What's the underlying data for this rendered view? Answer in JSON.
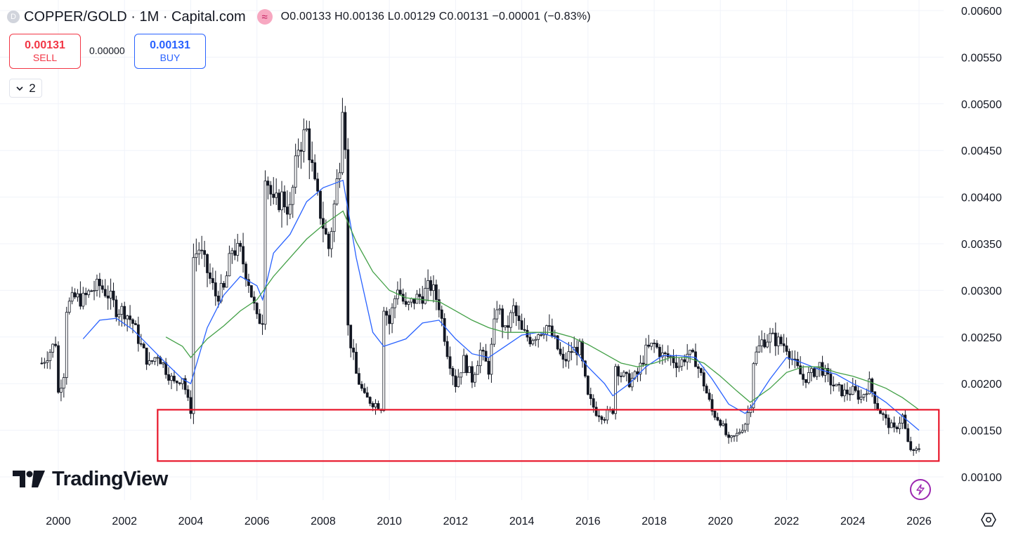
{
  "header": {
    "symbol_badge": "D",
    "title": "COPPER/GOLD · 1M · Capital.com",
    "indicator_icon": "wave-icon",
    "ohlc": "O0.00133 H0.00136 L0.00129 C0.00131 −0.00001 (−0.83%)"
  },
  "trade": {
    "sell_price": "0.00131",
    "sell_label": "SELL",
    "spread": "0.00000",
    "buy_price": "0.00131",
    "buy_label": "BUY"
  },
  "indicators_toggle": {
    "icon": "chevron-down-icon",
    "count": "2"
  },
  "logo": {
    "text": "TradingView"
  },
  "colors": {
    "candle": "#131722",
    "ma_fast": "#2962ff",
    "ma_slow": "#43a047",
    "highlight_box": "#e8172b",
    "grid": "#f0f3fa",
    "sell": "#f23645",
    "buy": "#2962ff",
    "flash": "#9c27b0"
  },
  "chart_data": {
    "type": "candlestick",
    "title": "COPPER/GOLD",
    "interval": "1M",
    "source": "Capital.com",
    "x_ticks": [
      "2000",
      "2002",
      "2004",
      "2006",
      "2008",
      "2010",
      "2012",
      "2014",
      "2016",
      "2018",
      "2020",
      "2022",
      "2024",
      "2026"
    ],
    "y_ticks": [
      "0.00100",
      "0.00150",
      "0.00200",
      "0.00250",
      "0.00300",
      "0.00350",
      "0.00400",
      "0.00450",
      "0.00500",
      "0.00550",
      "0.00600"
    ],
    "xlim": [
      "1999-03",
      "2027-01"
    ],
    "ylim": [
      0.00085,
      0.0061
    ],
    "grid": true,
    "last_ohlc": {
      "open": 0.00133,
      "high": 0.00136,
      "low": 0.00129,
      "close": 0.00131,
      "change": -1e-05,
      "change_pct": -0.83
    },
    "series": [
      {
        "name": "price",
        "kind": "close_path",
        "points": [
          [
            1999.5,
            0.00222
          ],
          [
            1999.75,
            0.00235
          ],
          [
            1999.92,
            0.00245
          ],
          [
            2000.0,
            0.0019
          ],
          [
            2000.17,
            0.00212
          ],
          [
            2000.25,
            0.00282
          ],
          [
            2000.5,
            0.00292
          ],
          [
            2000.75,
            0.0029
          ],
          [
            2001.0,
            0.003
          ],
          [
            2001.25,
            0.00305
          ],
          [
            2001.5,
            0.00296
          ],
          [
            2001.75,
            0.0028
          ],
          [
            2002.0,
            0.00278
          ],
          [
            2002.25,
            0.00265
          ],
          [
            2002.5,
            0.0024
          ],
          [
            2002.75,
            0.0022
          ],
          [
            2003.0,
            0.00232
          ],
          [
            2003.25,
            0.00215
          ],
          [
            2003.5,
            0.002
          ],
          [
            2003.75,
            0.00208
          ],
          [
            2003.92,
            0.0018
          ],
          [
            2004.0,
            0.00172
          ],
          [
            2004.08,
            0.00335
          ],
          [
            2004.25,
            0.00345
          ],
          [
            2004.5,
            0.0032
          ],
          [
            2004.75,
            0.00295
          ],
          [
            2005.0,
            0.003
          ],
          [
            2005.25,
            0.00345
          ],
          [
            2005.5,
            0.0034
          ],
          [
            2005.75,
            0.0031
          ],
          [
            2006.0,
            0.00268
          ],
          [
            2006.17,
            0.0027
          ],
          [
            2006.25,
            0.0043
          ],
          [
            2006.5,
            0.0039
          ],
          [
            2006.75,
            0.004
          ],
          [
            2007.0,
            0.00385
          ],
          [
            2007.25,
            0.00455
          ],
          [
            2007.5,
            0.0047
          ],
          [
            2007.75,
            0.0041
          ],
          [
            2008.0,
            0.0037
          ],
          [
            2008.17,
            0.00345
          ],
          [
            2008.33,
            0.0039
          ],
          [
            2008.5,
            0.0044
          ],
          [
            2008.6,
            0.0052
          ],
          [
            2008.67,
            0.0046
          ],
          [
            2008.75,
            0.0026
          ],
          [
            2009.0,
            0.0021
          ],
          [
            2009.25,
            0.00185
          ],
          [
            2009.5,
            0.0018
          ],
          [
            2009.75,
            0.00175
          ],
          [
            2009.83,
            0.00285
          ],
          [
            2010.0,
            0.00265
          ],
          [
            2010.25,
            0.00305
          ],
          [
            2010.5,
            0.0028
          ],
          [
            2010.75,
            0.0029
          ],
          [
            2011.0,
            0.00295
          ],
          [
            2011.25,
            0.00305
          ],
          [
            2011.5,
            0.00285
          ],
          [
            2011.75,
            0.00235
          ],
          [
            2012.0,
            0.002
          ],
          [
            2012.25,
            0.00225
          ],
          [
            2012.5,
            0.00205
          ],
          [
            2012.75,
            0.00235
          ],
          [
            2013.0,
            0.00215
          ],
          [
            2013.25,
            0.00285
          ],
          [
            2013.5,
            0.00255
          ],
          [
            2013.75,
            0.0028
          ],
          [
            2014.0,
            0.00255
          ],
          [
            2014.25,
            0.00248
          ],
          [
            2014.5,
            0.00255
          ],
          [
            2014.75,
            0.00262
          ],
          [
            2015.0,
            0.00245
          ],
          [
            2015.25,
            0.00222
          ],
          [
            2015.5,
            0.00235
          ],
          [
            2015.75,
            0.00238
          ],
          [
            2016.0,
            0.00185
          ],
          [
            2016.25,
            0.0017
          ],
          [
            2016.5,
            0.00165
          ],
          [
            2016.75,
            0.00172
          ],
          [
            2016.83,
            0.0022
          ],
          [
            2017.0,
            0.0021
          ],
          [
            2017.25,
            0.00202
          ],
          [
            2017.5,
            0.0021
          ],
          [
            2017.75,
            0.00235
          ],
          [
            2018.0,
            0.00242
          ],
          [
            2018.25,
            0.0023
          ],
          [
            2018.5,
            0.00228
          ],
          [
            2018.75,
            0.0022
          ],
          [
            2019.0,
            0.00232
          ],
          [
            2019.25,
            0.00225
          ],
          [
            2019.5,
            0.002
          ],
          [
            2019.75,
            0.0017
          ],
          [
            2020.0,
            0.0016
          ],
          [
            2020.25,
            0.00138
          ],
          [
            2020.5,
            0.00145
          ],
          [
            2020.75,
            0.00158
          ],
          [
            2020.92,
            0.0018
          ],
          [
            2021.0,
            0.00225
          ],
          [
            2021.25,
            0.00245
          ],
          [
            2021.5,
            0.0025
          ],
          [
            2021.75,
            0.00245
          ],
          [
            2022.0,
            0.0024
          ],
          [
            2022.25,
            0.0022
          ],
          [
            2022.5,
            0.00205
          ],
          [
            2022.75,
            0.0021
          ],
          [
            2023.0,
            0.0022
          ],
          [
            2023.25,
            0.00205
          ],
          [
            2023.5,
            0.00195
          ],
          [
            2023.75,
            0.0019
          ],
          [
            2024.0,
            0.00192
          ],
          [
            2024.25,
            0.00185
          ],
          [
            2024.5,
            0.002
          ],
          [
            2024.75,
            0.00175
          ],
          [
            2025.0,
            0.0016
          ],
          [
            2025.25,
            0.0015
          ],
          [
            2025.5,
            0.00165
          ],
          [
            2025.67,
            0.00135
          ],
          [
            2025.83,
            0.00125
          ],
          [
            2026.0,
            0.00131
          ]
        ]
      },
      {
        "name": "ma_fast",
        "kind": "line",
        "points": [
          [
            2000.75,
            0.00248
          ],
          [
            2001.25,
            0.00268
          ],
          [
            2001.75,
            0.0027
          ],
          [
            2002.25,
            0.00258
          ],
          [
            2002.75,
            0.0024
          ],
          [
            2003.25,
            0.00222
          ],
          [
            2003.75,
            0.00205
          ],
          [
            2004.0,
            0.002
          ],
          [
            2004.5,
            0.0026
          ],
          [
            2005.0,
            0.00295
          ],
          [
            2005.5,
            0.00315
          ],
          [
            2006.0,
            0.00305
          ],
          [
            2006.17,
            0.0029
          ],
          [
            2006.5,
            0.0034
          ],
          [
            2007.0,
            0.0036
          ],
          [
            2007.5,
            0.00395
          ],
          [
            2008.0,
            0.0041
          ],
          [
            2008.6,
            0.00418
          ],
          [
            2009.0,
            0.00335
          ],
          [
            2009.5,
            0.00255
          ],
          [
            2009.83,
            0.0024
          ],
          [
            2010.5,
            0.00248
          ],
          [
            2011.0,
            0.00265
          ],
          [
            2011.5,
            0.00268
          ],
          [
            2012.0,
            0.00248
          ],
          [
            2012.5,
            0.00232
          ],
          [
            2013.0,
            0.00228
          ],
          [
            2013.5,
            0.0024
          ],
          [
            2014.0,
            0.00252
          ],
          [
            2014.5,
            0.00255
          ],
          [
            2015.0,
            0.0025
          ],
          [
            2015.5,
            0.0024
          ],
          [
            2016.0,
            0.00218
          ],
          [
            2016.5,
            0.002
          ],
          [
            2016.75,
            0.00187
          ],
          [
            2017.25,
            0.002
          ],
          [
            2017.75,
            0.00218
          ],
          [
            2018.25,
            0.0023
          ],
          [
            2018.75,
            0.0023
          ],
          [
            2019.25,
            0.00228
          ],
          [
            2019.75,
            0.00205
          ],
          [
            2020.25,
            0.00178
          ],
          [
            2020.75,
            0.00168
          ],
          [
            2021.0,
            0.00178
          ],
          [
            2021.5,
            0.00205
          ],
          [
            2022.0,
            0.00228
          ],
          [
            2022.5,
            0.00222
          ],
          [
            2023.0,
            0.00215
          ],
          [
            2023.5,
            0.0021
          ],
          [
            2024.0,
            0.002
          ],
          [
            2024.5,
            0.00192
          ],
          [
            2025.0,
            0.0018
          ],
          [
            2025.5,
            0.00165
          ],
          [
            2026.0,
            0.0015
          ]
        ]
      },
      {
        "name": "ma_slow",
        "kind": "line",
        "points": [
          [
            2003.25,
            0.0025
          ],
          [
            2003.75,
            0.0024
          ],
          [
            2004.0,
            0.00228
          ],
          [
            2004.5,
            0.00248
          ],
          [
            2005.0,
            0.00262
          ],
          [
            2005.5,
            0.00278
          ],
          [
            2006.0,
            0.0029
          ],
          [
            2006.5,
            0.00315
          ],
          [
            2007.0,
            0.00335
          ],
          [
            2007.5,
            0.00355
          ],
          [
            2008.0,
            0.0037
          ],
          [
            2008.6,
            0.00385
          ],
          [
            2009.0,
            0.00352
          ],
          [
            2009.5,
            0.0032
          ],
          [
            2010.0,
            0.003
          ],
          [
            2010.5,
            0.00292
          ],
          [
            2011.0,
            0.0029
          ],
          [
            2011.5,
            0.00288
          ],
          [
            2012.0,
            0.00278
          ],
          [
            2012.5,
            0.00268
          ],
          [
            2013.0,
            0.0026
          ],
          [
            2013.5,
            0.00255
          ],
          [
            2014.0,
            0.00255
          ],
          [
            2014.5,
            0.00255
          ],
          [
            2015.0,
            0.00255
          ],
          [
            2015.5,
            0.0025
          ],
          [
            2016.0,
            0.00242
          ],
          [
            2016.5,
            0.00232
          ],
          [
            2017.0,
            0.00222
          ],
          [
            2017.5,
            0.00218
          ],
          [
            2018.0,
            0.00222
          ],
          [
            2018.5,
            0.00228
          ],
          [
            2019.0,
            0.00228
          ],
          [
            2019.5,
            0.00222
          ],
          [
            2020.0,
            0.00208
          ],
          [
            2020.5,
            0.00192
          ],
          [
            2020.9,
            0.0018
          ],
          [
            2021.5,
            0.00195
          ],
          [
            2022.0,
            0.00212
          ],
          [
            2022.5,
            0.00218
          ],
          [
            2023.0,
            0.00218
          ],
          [
            2023.5,
            0.00212
          ],
          [
            2024.0,
            0.00208
          ],
          [
            2024.5,
            0.00202
          ],
          [
            2025.0,
            0.00195
          ],
          [
            2025.5,
            0.00185
          ],
          [
            2026.0,
            0.00172
          ]
        ]
      }
    ],
    "annotations": [
      {
        "type": "rectangle",
        "x": [
          2003.0,
          2026.6
        ],
        "y": [
          0.00117,
          0.00172
        ],
        "color": "#e8172b"
      }
    ]
  }
}
